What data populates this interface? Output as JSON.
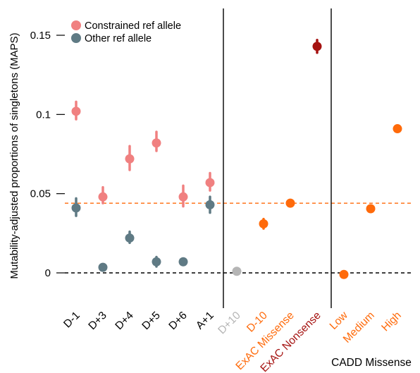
{
  "colors": {
    "constrained": "#F08080",
    "other": "#5F7A84",
    "orange": "#FF6A0A",
    "gray": "#B5B5B5",
    "nonsense": "#A51210",
    "dashed_orange": "#FF6A0A",
    "dashed_black": "#000000"
  },
  "chart_data": {
    "type": "scatter",
    "title": "",
    "xlabel": "",
    "ylabel": "Mutability-adjusted proportions of singletons (MAPS)",
    "ylim": [
      -0.02,
      0.165
    ],
    "yticks": [
      0,
      0.05,
      0.1,
      0.15
    ],
    "ytick_labels": [
      "0",
      "0.05",
      "0.1",
      "0.15"
    ],
    "grid": false,
    "legend": {
      "position": "top-left",
      "entries": [
        "Constrained ref allele",
        "Other ref allele"
      ]
    },
    "categories": [
      "D-1",
      "D+3",
      "D+4",
      "D+5",
      "D+6",
      "A+1",
      "D+10",
      "D-10",
      "ExAC Missense",
      "ExAC Nonsense",
      "Low",
      "Medium",
      "High"
    ],
    "category_colors": [
      "#000000",
      "#000000",
      "#000000",
      "#000000",
      "#000000",
      "#000000",
      "#B5B5B5",
      "#FF6A0A",
      "#FF6A0A",
      "#A51210",
      "#FF6A0A",
      "#FF6A0A",
      "#FF6A0A"
    ],
    "group_label": "CADD Missense",
    "series": [
      {
        "name": "Constrained ref allele",
        "color": "#F08080",
        "points": [
          {
            "x": "D-1",
            "y": 0.102,
            "lo": 0.097,
            "hi": 0.108
          },
          {
            "x": "D+3",
            "y": 0.048,
            "lo": 0.044,
            "hi": 0.054
          },
          {
            "x": "D+4",
            "y": 0.072,
            "lo": 0.065,
            "hi": 0.08
          },
          {
            "x": "D+5",
            "y": 0.082,
            "lo": 0.077,
            "hi": 0.089
          },
          {
            "x": "D+6",
            "y": 0.048,
            "lo": 0.042,
            "hi": 0.055
          },
          {
            "x": "A+1",
            "y": 0.057,
            "lo": 0.052,
            "hi": 0.063
          }
        ]
      },
      {
        "name": "Other ref allele",
        "color": "#5F7A84",
        "points": [
          {
            "x": "D-1",
            "y": 0.041,
            "lo": 0.036,
            "hi": 0.047
          },
          {
            "x": "D+3",
            "y": 0.0035,
            "lo": 0.003,
            "hi": 0.004
          },
          {
            "x": "D+4",
            "y": 0.022,
            "lo": 0.019,
            "hi": 0.026
          },
          {
            "x": "D+5",
            "y": 0.007,
            "lo": 0.004,
            "hi": 0.01
          },
          {
            "x": "D+6",
            "y": 0.007,
            "lo": 0.006,
            "hi": 0.008
          },
          {
            "x": "A+1",
            "y": 0.043,
            "lo": 0.038,
            "hi": 0.048
          }
        ]
      },
      {
        "color": "#B5B5B5",
        "points": [
          {
            "x": "D+10",
            "y": 0.001,
            "lo": 0.0,
            "hi": 0.002
          }
        ]
      },
      {
        "color": "#FF6A0A",
        "points": [
          {
            "x": "D-10",
            "y": 0.031,
            "lo": 0.028,
            "hi": 0.034
          },
          {
            "x": "ExAC Missense",
            "y": 0.044,
            "lo": 0.043,
            "hi": 0.045
          }
        ]
      },
      {
        "color": "#A51210",
        "points": [
          {
            "x": "ExAC Nonsense",
            "y": 0.143,
            "lo": 0.139,
            "hi": 0.147
          }
        ]
      },
      {
        "color": "#FF6A0A",
        "points": [
          {
            "x": "Low",
            "y": -0.001,
            "lo": -0.002,
            "hi": 0.0
          },
          {
            "x": "Medium",
            "y": 0.0405,
            "lo": 0.0395,
            "hi": 0.0415
          },
          {
            "x": "High",
            "y": 0.091,
            "lo": 0.09,
            "hi": 0.092
          }
        ]
      }
    ],
    "reference_lines": [
      {
        "y": 0.044,
        "color": "#FF6A0A",
        "style": "dashed"
      },
      {
        "y": 0,
        "color": "#000000",
        "style": "dashed"
      }
    ],
    "dividers_after": [
      "A+1",
      "ExAC Nonsense"
    ]
  }
}
